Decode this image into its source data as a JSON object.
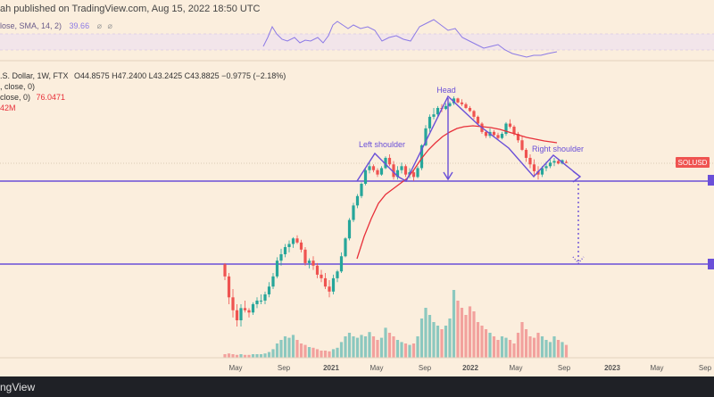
{
  "header": {
    "published": "ah published on TradingView.com, Aug 15, 2022 18:50 UTC"
  },
  "rsi_panel": {
    "legend": "lose, SMA, 14, 2)",
    "value": "39.66",
    "icons": [
      "eye-off-icon",
      "settings-icon"
    ]
  },
  "main_legend": {
    "line1_prefix": ".S. Dollar, 1W, FTX",
    "ohlc": "O44.8575  H47.2400  L43.2425  C43.8825  −0.9775 (−2.18%)",
    "line2": ", close, 0)",
    "line3_prefix": "close, 0)",
    "line3_value": "76.0471",
    "line4": "42M"
  },
  "annotations": {
    "head": "Head",
    "left_shoulder": "Left shoulder",
    "right_shoulder": "Right shoulder"
  },
  "price_tag": "SOLUSD",
  "footer": {
    "brand": "ngView"
  },
  "colors": {
    "background": "#fbeedd",
    "up": "#26a69a",
    "down": "#ef5350",
    "pattern": "#6a4fd8",
    "sma": "#e8303a",
    "rsi": "#8c7ae6"
  },
  "chart_data": {
    "type": "candlestick",
    "x_tick_labels": [
      "May",
      "Sep",
      "2021",
      "May",
      "Sep",
      "2022",
      "May",
      "Sep",
      "2023",
      "May",
      "Sep"
    ],
    "approx_weekly_ohlc": [
      [
        2.9,
        3.0,
        1.9,
        2.1
      ],
      [
        2.1,
        2.3,
        1.0,
        1.2
      ],
      [
        1.2,
        1.5,
        0.7,
        0.85
      ],
      [
        0.85,
        1.0,
        0.55,
        0.65
      ],
      [
        0.65,
        1.0,
        0.55,
        0.9
      ],
      [
        0.9,
        1.1,
        0.8,
        0.85
      ],
      [
        0.85,
        0.9,
        0.7,
        0.8
      ],
      [
        0.8,
        1.05,
        0.75,
        1.0
      ],
      [
        1.0,
        1.2,
        0.9,
        1.1
      ],
      [
        1.1,
        1.3,
        1.0,
        1.1
      ],
      [
        1.1,
        1.4,
        1.0,
        1.3
      ],
      [
        1.3,
        1.8,
        1.2,
        1.6
      ],
      [
        1.6,
        2.3,
        1.5,
        2.1
      ],
      [
        2.1,
        3.5,
        2.0,
        3.2
      ],
      [
        3.2,
        4.4,
        2.8,
        3.8
      ],
      [
        3.8,
        5.0,
        3.5,
        4.6
      ],
      [
        4.6,
        5.5,
        4.0,
        5.0
      ],
      [
        5.0,
        6.0,
        4.5,
        5.8
      ],
      [
        5.8,
        6.3,
        5.0,
        5.2
      ],
      [
        5.2,
        5.6,
        4.0,
        4.3
      ],
      [
        4.3,
        4.6,
        2.8,
        3.0
      ],
      [
        3.0,
        3.4,
        2.6,
        3.2
      ],
      [
        3.2,
        3.6,
        2.5,
        2.8
      ],
      [
        2.8,
        3.0,
        2.0,
        2.2
      ],
      [
        2.2,
        2.5,
        1.8,
        2.0
      ],
      [
        2.0,
        2.3,
        1.5,
        1.6
      ],
      [
        1.6,
        1.9,
        1.2,
        1.4
      ],
      [
        1.4,
        2.2,
        1.3,
        2.0
      ],
      [
        2.0,
        2.5,
        1.8,
        2.4
      ],
      [
        2.4,
        4.0,
        2.3,
        3.6
      ],
      [
        3.6,
        6.0,
        3.5,
        5.8
      ],
      [
        5.8,
        10.0,
        5.5,
        9.5
      ],
      [
        9.5,
        15.0,
        9.0,
        14.0
      ],
      [
        14.0,
        19.0,
        13.0,
        18.0
      ],
      [
        18.0,
        26.0,
        17.0,
        25.0
      ],
      [
        25.0,
        38.0,
        24.0,
        36.0
      ],
      [
        36.0,
        45.0,
        33.0,
        40.0
      ],
      [
        40.0,
        42.0,
        34.0,
        36.0
      ],
      [
        36.0,
        38.0,
        30.0,
        32.0
      ],
      [
        32.0,
        40.0,
        31.0,
        38.0
      ],
      [
        38.0,
        52.0,
        37.0,
        50.0
      ],
      [
        50.0,
        55.0,
        40.0,
        42.0
      ],
      [
        42.0,
        46.0,
        28.0,
        30.0
      ],
      [
        30.0,
        40.0,
        28.0,
        36.0
      ],
      [
        36.0,
        44.0,
        33.0,
        40.0
      ],
      [
        40.0,
        42.0,
        30.0,
        32.0
      ],
      [
        32.0,
        38.0,
        29.0,
        34.0
      ],
      [
        34.0,
        36.0,
        27.0,
        30.0
      ],
      [
        30.0,
        40.0,
        29.0,
        38.0
      ],
      [
        38.0,
        72.0,
        36.0,
        70.0
      ],
      [
        70.0,
        120.0,
        68.0,
        110.0
      ],
      [
        110.0,
        160.0,
        100.0,
        150.0
      ],
      [
        150.0,
        190.0,
        140.0,
        160.0
      ],
      [
        160.0,
        200.0,
        150.0,
        190.0
      ],
      [
        190.0,
        210.0,
        170.0,
        185.0
      ],
      [
        185.0,
        215.0,
        180.0,
        200.0
      ],
      [
        200.0,
        225.0,
        195.0,
        215.0
      ],
      [
        215.0,
        259.0,
        205.0,
        245.0
      ],
      [
        245.0,
        250.0,
        215.0,
        220.0
      ],
      [
        220.0,
        240.0,
        200.0,
        210.0
      ],
      [
        210.0,
        220.0,
        185.0,
        190.0
      ],
      [
        190.0,
        200.0,
        170.0,
        175.0
      ],
      [
        175.0,
        180.0,
        140.0,
        150.0
      ],
      [
        150.0,
        155.0,
        120.0,
        125.0
      ],
      [
        125.0,
        130.0,
        95.0,
        100.0
      ],
      [
        100.0,
        105.0,
        85.0,
        90.0
      ],
      [
        90.0,
        110.0,
        85.0,
        100.0
      ],
      [
        100.0,
        105.0,
        88.0,
        92.0
      ],
      [
        92.0,
        98.0,
        80.0,
        85.0
      ],
      [
        85.0,
        100.0,
        82.0,
        95.0
      ],
      [
        95.0,
        130.0,
        90.0,
        125.0
      ],
      [
        125.0,
        140.0,
        110.0,
        115.0
      ],
      [
        115.0,
        120.0,
        90.0,
        95.0
      ],
      [
        95.0,
        100.0,
        75.0,
        80.0
      ],
      [
        80.0,
        90.0,
        60.0,
        62.0
      ],
      [
        62.0,
        65.0,
        45.0,
        50.0
      ],
      [
        50.0,
        55.0,
        38.0,
        42.0
      ],
      [
        42.0,
        48.0,
        30.0,
        35.0
      ],
      [
        35.0,
        40.0,
        28.0,
        32.0
      ],
      [
        32.0,
        40.0,
        30.0,
        38.0
      ],
      [
        38.0,
        45.0,
        35.0,
        40.0
      ],
      [
        40.0,
        48.0,
        38.0,
        44.0
      ],
      [
        44.0,
        50.0,
        40.0,
        46.0
      ],
      [
        46.0,
        48.0,
        42.0,
        43.0
      ],
      [
        43.0,
        48.0,
        42.0,
        47.0
      ],
      [
        44.86,
        47.24,
        43.24,
        43.88
      ]
    ],
    "approx_volume_relative": [
      0.05,
      0.06,
      0.05,
      0.04,
      0.05,
      0.04,
      0.04,
      0.05,
      0.05,
      0.05,
      0.06,
      0.08,
      0.12,
      0.2,
      0.25,
      0.3,
      0.28,
      0.32,
      0.25,
      0.2,
      0.18,
      0.15,
      0.14,
      0.12,
      0.1,
      0.1,
      0.09,
      0.12,
      0.14,
      0.22,
      0.3,
      0.35,
      0.3,
      0.28,
      0.32,
      0.3,
      0.36,
      0.3,
      0.25,
      0.28,
      0.42,
      0.35,
      0.3,
      0.25,
      0.22,
      0.2,
      0.18,
      0.2,
      0.3,
      0.55,
      0.7,
      0.6,
      0.5,
      0.45,
      0.4,
      0.45,
      0.55,
      0.95,
      0.8,
      0.7,
      0.6,
      0.72,
      0.65,
      0.5,
      0.45,
      0.4,
      0.35,
      0.3,
      0.25,
      0.3,
      0.28,
      0.25,
      0.2,
      0.35,
      0.5,
      0.4,
      0.3,
      0.28,
      0.35,
      0.3,
      0.25,
      0.22,
      0.3,
      0.25,
      0.22,
      0.18
    ],
    "y_scale": "log"
  }
}
